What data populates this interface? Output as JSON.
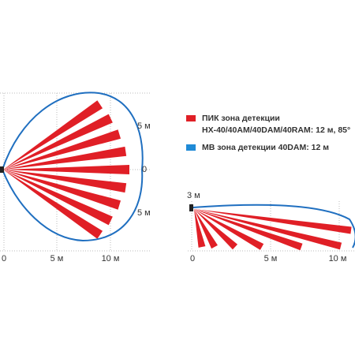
{
  "top_view": {
    "y_labels": [
      "5 м",
      "0",
      "5 м"
    ],
    "x_labels": [
      "0",
      "5 м",
      "10 м"
    ]
  },
  "legend": {
    "pir_title": "ПИК зона детекции",
    "pir_models": "HX-40/40AM/40DAM/40RAM: 12 м, 85°",
    "mw": "МВ зона детекции 40DAM: 12 м"
  },
  "side_view": {
    "height_label": "3 м",
    "x_labels": [
      "0",
      "5 м",
      "10 м"
    ]
  }
}
